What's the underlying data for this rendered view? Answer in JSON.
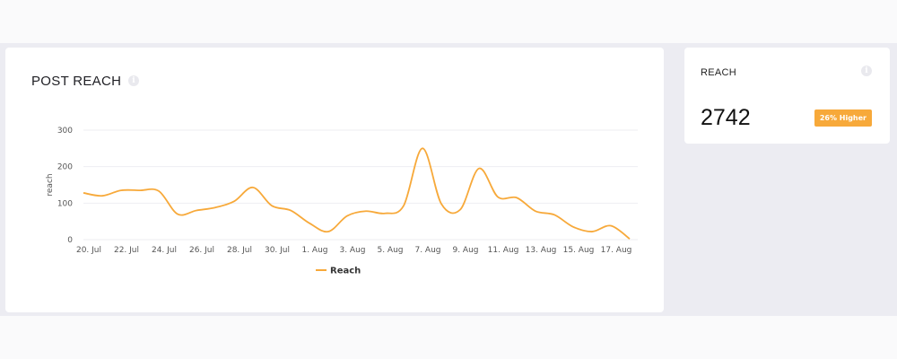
{
  "chart_card": {
    "title": "POST REACH",
    "info_icon": "info-icon"
  },
  "kpi_card": {
    "title": "REACH",
    "value": "2742",
    "badge": "26% Higher",
    "info_icon": "info-icon"
  },
  "colors": {
    "series": "#f7a93a",
    "badge": "#f7a93a"
  },
  "chart_data": {
    "type": "line",
    "x": [
      "20. Jul",
      "21. Jul",
      "22. Jul",
      "23. Jul",
      "24. Jul",
      "25. Jul",
      "26. Jul",
      "27. Jul",
      "28. Jul",
      "29. Jul",
      "30. Jul",
      "31. Jul",
      "1. Aug",
      "2. Aug",
      "3. Aug",
      "4. Aug",
      "5. Aug",
      "6. Aug",
      "7. Aug",
      "8. Aug",
      "9. Aug",
      "10. Aug",
      "11. Aug",
      "12. Aug",
      "13. Aug",
      "14. Aug",
      "15. Aug",
      "16. Aug",
      "17. Aug",
      "18. Aug"
    ],
    "tick_labels": [
      "20. Jul",
      "22. Jul",
      "24. Jul",
      "26. Jul",
      "28. Jul",
      "30. Jul",
      "1. Aug",
      "3. Aug",
      "5. Aug",
      "7. Aug",
      "9. Aug",
      "11. Aug",
      "13. Aug",
      "15. Aug",
      "17. Aug"
    ],
    "series": [
      {
        "name": "Reach",
        "values": [
          128,
          120,
          135,
          135,
          133,
          70,
          80,
          88,
          105,
          143,
          93,
          80,
          45,
          22,
          65,
          78,
          72,
          93,
          250,
          98,
          82,
          195,
          117,
          115,
          78,
          68,
          35,
          22,
          38,
          2
        ]
      }
    ],
    "title": "POST REACH",
    "xlabel": "",
    "ylabel": "reach",
    "ylim": [
      0,
      300
    ],
    "yticks": [
      0,
      100,
      200,
      300
    ],
    "grid": true,
    "legend": "bottom-center"
  }
}
